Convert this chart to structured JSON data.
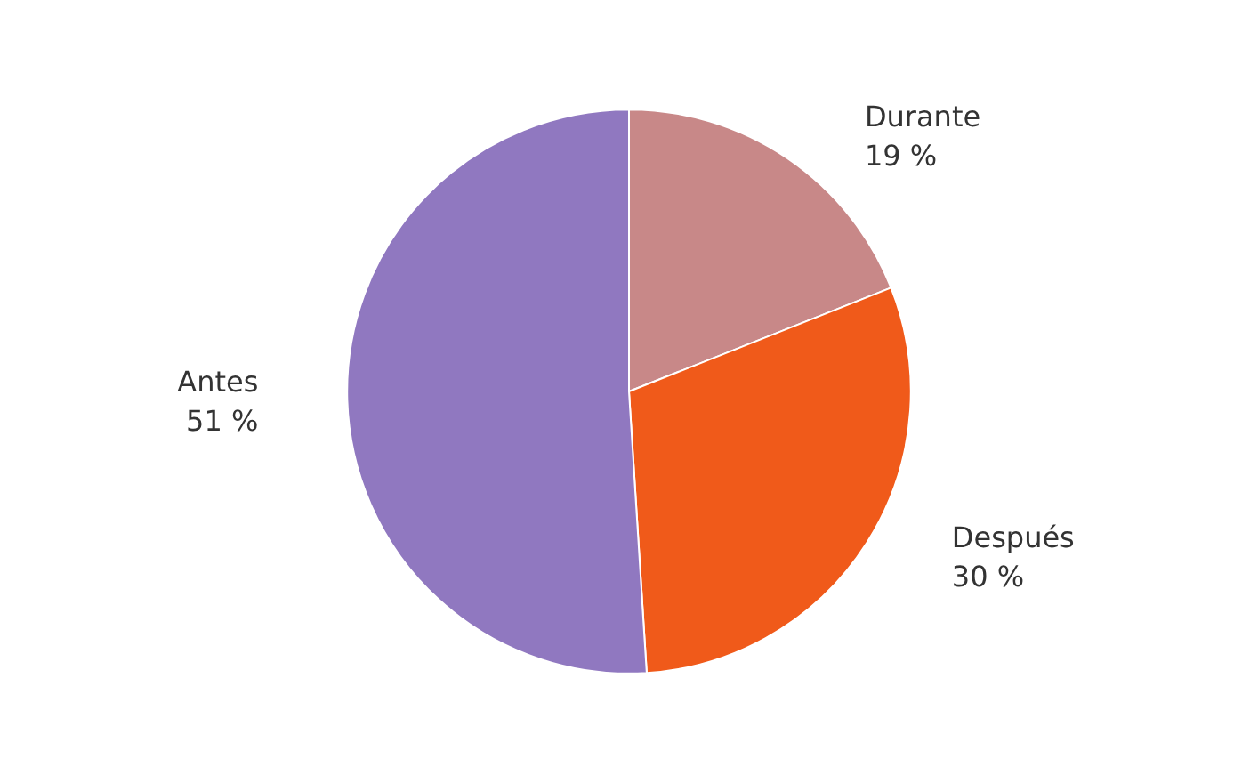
{
  "chart_data": {
    "type": "pie",
    "categories": [
      "Durante",
      "Después",
      "Antes"
    ],
    "values": [
      19,
      30,
      51
    ],
    "value_labels": [
      "19 %",
      "30 %",
      "51 %"
    ],
    "colors": [
      "#c88888",
      "#f05a1a",
      "#9078c0"
    ],
    "legend": false
  }
}
